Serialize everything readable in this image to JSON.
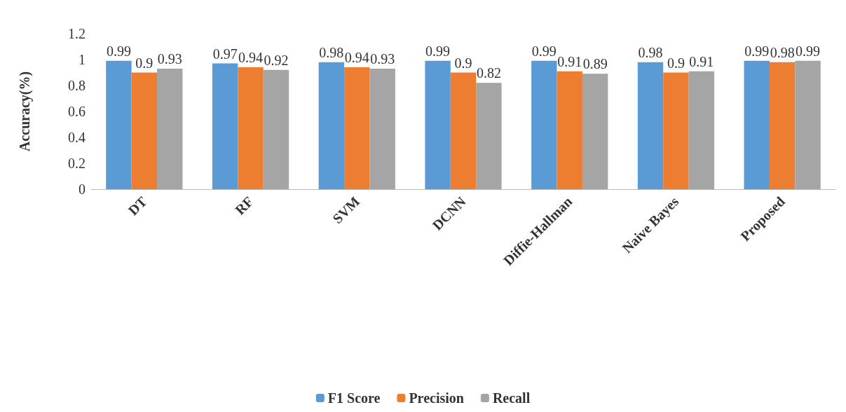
{
  "chart_data": {
    "type": "bar",
    "ylabel": "Accuracy(%)",
    "categories": [
      "DT",
      "RF",
      "SVM",
      "DCNN",
      "Diffie-Hallman",
      "Naive Bayes",
      "Proposed"
    ],
    "series": [
      {
        "name": "F1 Score",
        "color": "#5b9bd5",
        "values": [
          0.99,
          0.97,
          0.98,
          0.99,
          0.99,
          0.98,
          0.99
        ]
      },
      {
        "name": "Precision",
        "color": "#ed7d31",
        "values": [
          0.9,
          0.94,
          0.94,
          0.9,
          0.91,
          0.9,
          0.98
        ]
      },
      {
        "name": "Recall",
        "color": "#a5a5a5",
        "values": [
          0.93,
          0.92,
          0.93,
          0.82,
          0.89,
          0.91,
          0.99
        ]
      }
    ],
    "ylim": [
      0,
      1.2
    ],
    "yticks": [
      0,
      0.2,
      0.4,
      0.6,
      0.8,
      1,
      1.2
    ],
    "grid": false,
    "legend": "bottom",
    "data_labels": true
  }
}
